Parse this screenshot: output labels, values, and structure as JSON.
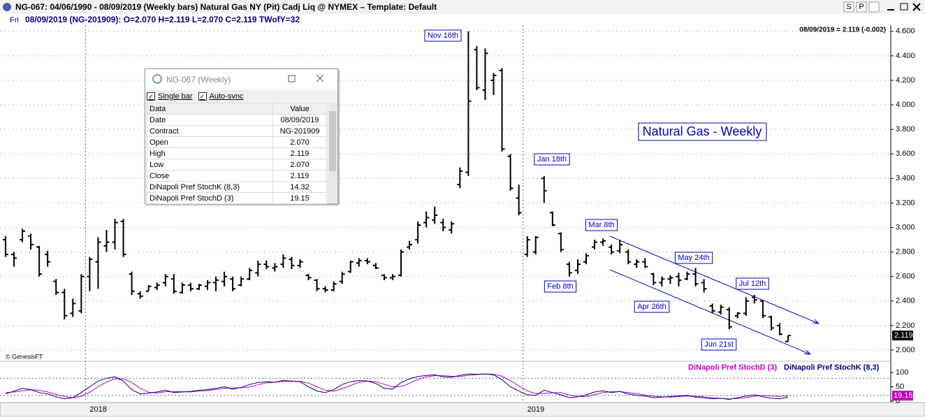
{
  "window": {
    "title": "NG-067:  04/06/1990 - 08/09/2019  (Weekly bars)   Natural Gas NY (Pit) Cadj Liq @ NYMEX  –  Template: Default",
    "buttons": [
      "S",
      "P"
    ]
  },
  "info_bar": {
    "day": "Fri",
    "text": "08/09/2019 (NG-201909):  O=2.070  H=2.119  L=2.070  C=2.119  TWofY=32"
  },
  "chart_data": [
    {
      "type": "ohlc",
      "title": "Natural Gas - Weekly",
      "readout": "08/09/2019 = 2.119 (-0.002)",
      "copyright": "© GenesisFT",
      "color": "#000000",
      "annotations": [
        "Nov 16th",
        "Jan 18th",
        "Mar 8th",
        "Feb 8th",
        "May 24th",
        "Apr 26th",
        "Jul 12th",
        "Jun 21st"
      ],
      "xlim": [
        -0.66,
        105.2
      ],
      "ylim": [
        1.92,
        4.65
      ],
      "grid": true,
      "yticks": [
        {
          "value": 2.0,
          "label": "2.000"
        },
        {
          "value": 2.2,
          "label": "2.200"
        },
        {
          "value": 2.4,
          "label": "2.400"
        },
        {
          "value": 2.6,
          "label": "2.600"
        },
        {
          "value": 2.8,
          "label": "2.800"
        },
        {
          "value": 3.0,
          "label": "3.000"
        },
        {
          "value": 3.2,
          "label": "3.200"
        },
        {
          "value": 3.4,
          "label": "3.400"
        },
        {
          "value": 3.6,
          "label": "3.600"
        },
        {
          "value": 3.8,
          "label": "3.800"
        },
        {
          "value": 4.0,
          "label": "4.000"
        },
        {
          "value": 4.2,
          "label": "4.200"
        },
        {
          "value": 4.4,
          "label": "4.400"
        },
        {
          "value": 4.6,
          "label": "4.600"
        }
      ],
      "open": [
        2.9,
        2.78,
        2.9,
        2.93,
        2.84,
        2.78,
        2.56,
        2.47,
        2.3,
        2.32,
        2.6,
        2.72,
        2.85,
        2.88,
        3.05,
        2.62,
        2.46,
        2.48,
        2.51,
        2.55,
        2.58,
        2.47,
        2.53,
        2.5,
        2.52,
        2.55,
        2.56,
        2.58,
        2.53,
        2.58,
        2.63,
        2.7,
        2.67,
        2.7,
        2.74,
        2.69,
        2.61,
        2.57,
        2.5,
        2.49,
        2.56,
        2.64,
        2.71,
        2.73,
        2.69,
        2.61,
        2.59,
        2.61,
        2.84,
        2.9,
        3.04,
        3.06,
        3.04,
        2.98,
        3.35,
        3.45,
        4.45,
        4.12,
        4.2,
        4.28,
        3.58,
        3.24,
        2.78,
        2.8,
        3.4,
        3.12,
        2.95,
        2.7,
        2.65,
        2.72,
        2.84,
        2.88,
        2.84,
        2.81,
        2.8,
        2.7,
        2.72,
        2.62,
        2.55,
        2.58,
        2.6,
        2.58,
        2.62,
        2.55,
        2.36,
        2.31,
        2.33,
        2.28,
        2.3,
        2.43,
        2.4,
        2.27,
        2.2,
        2.07
      ],
      "high": [
        2.93,
        2.8,
        2.99,
        2.95,
        2.85,
        2.81,
        2.58,
        2.5,
        2.42,
        2.62,
        2.76,
        2.92,
        2.98,
        3.07,
        3.07,
        2.64,
        2.48,
        2.53,
        2.55,
        2.62,
        2.62,
        2.55,
        2.55,
        2.54,
        2.57,
        2.6,
        2.64,
        2.6,
        2.6,
        2.67,
        2.73,
        2.73,
        2.71,
        2.78,
        2.76,
        2.74,
        2.62,
        2.58,
        2.52,
        2.56,
        2.64,
        2.73,
        2.75,
        2.75,
        2.71,
        2.62,
        2.62,
        2.82,
        2.89,
        3.05,
        3.13,
        3.17,
        3.07,
        3.05,
        3.49,
        4.6,
        4.48,
        4.46,
        4.26,
        4.3,
        3.6,
        3.35,
        2.93,
        2.93,
        3.42,
        3.13,
        2.96,
        2.72,
        2.74,
        2.79,
        2.9,
        2.91,
        2.86,
        2.9,
        2.82,
        2.74,
        2.75,
        2.63,
        2.6,
        2.61,
        2.63,
        2.64,
        2.67,
        2.58,
        2.38,
        2.37,
        2.35,
        2.31,
        2.43,
        2.45,
        2.41,
        2.28,
        2.22,
        2.119
      ],
      "low": [
        2.76,
        2.68,
        2.88,
        2.82,
        2.6,
        2.68,
        2.45,
        2.25,
        2.27,
        2.3,
        2.48,
        2.5,
        2.8,
        2.82,
        2.76,
        2.45,
        2.42,
        2.48,
        2.49,
        2.52,
        2.46,
        2.46,
        2.48,
        2.49,
        2.49,
        2.48,
        2.52,
        2.48,
        2.52,
        2.57,
        2.6,
        2.66,
        2.64,
        2.67,
        2.66,
        2.67,
        2.57,
        2.48,
        2.47,
        2.48,
        2.54,
        2.63,
        2.68,
        2.7,
        2.66,
        2.57,
        2.57,
        2.6,
        2.82,
        2.87,
        3.0,
        3.03,
        2.97,
        2.95,
        3.32,
        3.42,
        4.12,
        4.04,
        4.08,
        3.62,
        3.3,
        3.1,
        2.76,
        2.78,
        3.2,
        3.01,
        2.8,
        2.6,
        2.62,
        2.7,
        2.82,
        2.85,
        2.78,
        2.79,
        2.7,
        2.67,
        2.67,
        2.53,
        2.52,
        2.54,
        2.52,
        2.57,
        2.52,
        2.47,
        2.3,
        2.29,
        2.17,
        2.26,
        2.28,
        2.38,
        2.26,
        2.16,
        2.12,
        2.07
      ],
      "close": [
        2.78,
        2.75,
        2.97,
        2.86,
        2.62,
        2.72,
        2.47,
        2.28,
        2.38,
        2.6,
        2.74,
        2.88,
        2.88,
        3.04,
        2.78,
        2.48,
        2.44,
        2.52,
        2.53,
        2.6,
        2.48,
        2.53,
        2.5,
        2.53,
        2.55,
        2.57,
        2.6,
        2.5,
        2.58,
        2.65,
        2.7,
        2.68,
        2.68,
        2.75,
        2.69,
        2.72,
        2.59,
        2.5,
        2.49,
        2.54,
        2.62,
        2.72,
        2.73,
        2.72,
        2.67,
        2.59,
        2.6,
        2.8,
        2.86,
        3.02,
        3.08,
        3.1,
        3.0,
        3.03,
        3.46,
        4.03,
        4.14,
        4.42,
        4.24,
        3.64,
        3.32,
        3.12,
        2.9,
        2.92,
        3.3,
        3.02,
        2.82,
        2.63,
        2.7,
        2.77,
        2.88,
        2.89,
        2.8,
        2.86,
        2.72,
        2.72,
        2.68,
        2.55,
        2.58,
        2.59,
        2.57,
        2.62,
        2.54,
        2.5,
        2.32,
        2.35,
        2.19,
        2.3,
        2.4,
        2.41,
        2.28,
        2.18,
        2.13,
        2.119
      ]
    },
    {
      "type": "line",
      "xlim": [
        -0.66,
        105.2
      ],
      "ylim": [
        -5,
        132
      ],
      "yticks": [
        0,
        50,
        100
      ],
      "guide_lines": [
        80,
        20
      ],
      "xticks": [
        {
          "value": 9.5,
          "label": "2018"
        },
        {
          "value": 61.5,
          "label": "2019"
        }
      ],
      "series": [
        {
          "name": "DiNapoli Pref StochD (3)",
          "color": "#c000c0",
          "values": [
            30,
            32,
            36,
            40,
            38,
            32,
            23,
            16,
            12,
            17,
            31,
            50,
            67,
            78,
            78,
            65,
            45,
            31,
            28,
            33,
            33,
            33,
            32,
            35,
            37,
            41,
            45,
            46,
            47,
            49,
            57,
            64,
            66,
            69,
            69,
            69,
            63,
            51,
            38,
            35,
            43,
            55,
            66,
            70,
            68,
            59,
            50,
            51,
            62,
            76,
            85,
            89,
            89,
            87,
            86,
            90,
            93,
            95,
            94,
            87,
            72,
            53,
            36,
            26,
            27,
            29,
            30,
            21,
            16,
            16,
            23,
            30,
            33,
            33,
            30,
            26,
            21,
            17,
            15,
            14,
            16,
            18,
            17,
            15,
            11,
            10,
            8,
            9,
            12,
            17,
            20,
            18,
            16,
            19.15
          ]
        },
        {
          "name": "DiNapoli Pref StochK (8,3)",
          "color": "#000080",
          "values": [
            25,
            35,
            45,
            40,
            30,
            25,
            15,
            8,
            12,
            30,
            50,
            70,
            80,
            85,
            70,
            40,
            25,
            28,
            32,
            38,
            30,
            32,
            34,
            38,
            40,
            45,
            50,
            42,
            48,
            58,
            65,
            68,
            66,
            72,
            70,
            68,
            50,
            35,
            30,
            40,
            58,
            68,
            72,
            70,
            62,
            45,
            42,
            65,
            78,
            86,
            90,
            92,
            85,
            84,
            90,
            95,
            94,
            95,
            92,
            75,
            50,
            35,
            22,
            20,
            38,
            30,
            22,
            12,
            15,
            22,
            32,
            36,
            30,
            34,
            25,
            20,
            18,
            12,
            14,
            16,
            18,
            20,
            14,
            12,
            8,
            10,
            6,
            12,
            18,
            22,
            15,
            10,
            8,
            14.32
          ]
        }
      ]
    }
  ],
  "data_window": {
    "title": "NG-067 (Weekly)",
    "options": [
      "Single bar",
      "Auto-sync"
    ],
    "columns": [
      "Data",
      "Value"
    ],
    "rows": [
      [
        "Date",
        "08/09/2019"
      ],
      [
        "Contract",
        "NG-201909"
      ],
      [
        "Open",
        "2.070"
      ],
      [
        "High",
        "2.119"
      ],
      [
        "Low",
        "2.070"
      ],
      [
        "Close",
        "2.119"
      ],
      [
        "DiNapoli Pref StochK (8,3)",
        "14.32"
      ],
      [
        "DiNapoli Pref StochD (3)",
        "19.15"
      ]
    ]
  }
}
